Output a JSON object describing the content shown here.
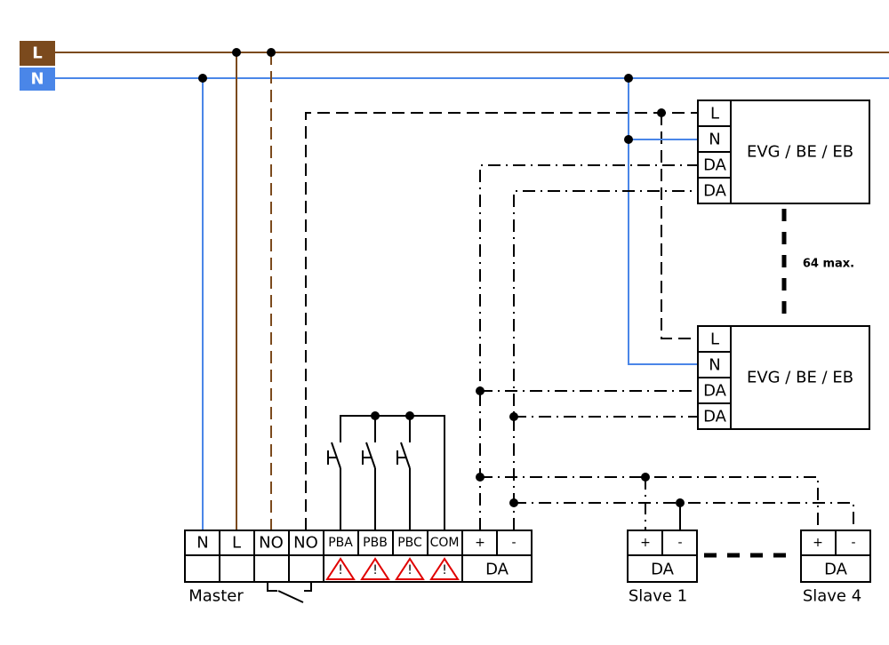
{
  "colors": {
    "live": "#7b4a1d",
    "neutral": "#4a86e8",
    "warning": "#e00000",
    "wire": "#000000"
  },
  "bus": {
    "l_label": "L",
    "n_label": "N"
  },
  "master": {
    "label": "Master",
    "terminals": [
      "N",
      "L",
      "NO",
      "NO",
      "PBA",
      "PBB",
      "PBC",
      "COM",
      "+",
      "-"
    ],
    "da_label": "DA",
    "warning_icons": [
      "warning-icon",
      "warning-icon",
      "warning-icon",
      "warning-icon"
    ]
  },
  "ballasts": [
    {
      "label": "EVG / BE / EB",
      "terminals": [
        "L",
        "N",
        "DA",
        "DA"
      ]
    },
    {
      "label": "EVG / BE / EB",
      "terminals": [
        "L",
        "N",
        "DA",
        "DA"
      ]
    }
  ],
  "max_note": "64 max.",
  "slaves": [
    {
      "label": "Slave 1",
      "plus": "+",
      "minus": "-",
      "da": "DA"
    },
    {
      "label": "Slave 4",
      "plus": "+",
      "minus": "-",
      "da": "DA"
    }
  ]
}
